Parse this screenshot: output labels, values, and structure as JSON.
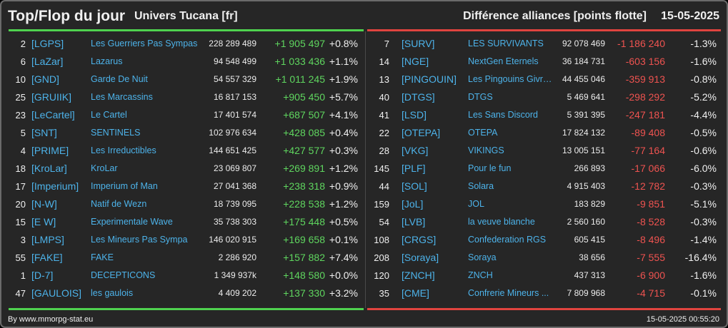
{
  "header": {
    "title": "Top/Flop du jour",
    "universe": "Univers Tucana [fr]",
    "subtitle": "Différence alliances [points flotte]",
    "date": "15-05-2025"
  },
  "colors": {
    "top": "#4fd24f",
    "flop": "#e0443f",
    "link": "#4db3ea",
    "background": "#262626"
  },
  "top": [
    {
      "rank": "2",
      "tag": "[LGPS]",
      "name": "Les Guerriers Pas Sympas",
      "points": "228 289 489",
      "diff": "+1 905 497",
      "pct": "+0.8%"
    },
    {
      "rank": "6",
      "tag": "[LaZar]",
      "name": "Lazarus",
      "points": "94 548 499",
      "diff": "+1 033 436",
      "pct": "+1.1%"
    },
    {
      "rank": "10",
      "tag": "[GND]",
      "name": "Garde De Nuit",
      "points": "54 557 329",
      "diff": "+1 011 245",
      "pct": "+1.9%"
    },
    {
      "rank": "25",
      "tag": "[GRUIIK]",
      "name": "Les Marcassins",
      "points": "16 817 153",
      "diff": "+905 450",
      "pct": "+5.7%"
    },
    {
      "rank": "23",
      "tag": "[LeCartel]",
      "name": "Le Cartel",
      "points": "17 401 574",
      "diff": "+687 507",
      "pct": "+4.1%"
    },
    {
      "rank": "5",
      "tag": "[SNT]",
      "name": "SENTINELS",
      "points": "102 976 634",
      "diff": "+428 085",
      "pct": "+0.4%"
    },
    {
      "rank": "4",
      "tag": "[PRIME]",
      "name": "Les Irreductibles",
      "points": "144 651 425",
      "diff": "+427 577",
      "pct": "+0.3%"
    },
    {
      "rank": "18",
      "tag": "[KroLar]",
      "name": "KroLar",
      "points": "23 069 807",
      "diff": "+269 891",
      "pct": "+1.2%"
    },
    {
      "rank": "17",
      "tag": "[Imperium]",
      "name": "Imperium of Man",
      "points": "27 041 368",
      "diff": "+238 318",
      "pct": "+0.9%"
    },
    {
      "rank": "20",
      "tag": "[N-W]",
      "name": "Natif de Wezn",
      "points": "18 739 095",
      "diff": "+228 538",
      "pct": "+1.2%"
    },
    {
      "rank": "15",
      "tag": "[E W]",
      "name": "Experimentale Wave",
      "points": "35 738 303",
      "diff": "+175 448",
      "pct": "+0.5%"
    },
    {
      "rank": "3",
      "tag": "[LMPS]",
      "name": "Les Mineurs Pas Sympa",
      "points": "146 020 915",
      "diff": "+169 658",
      "pct": "+0.1%"
    },
    {
      "rank": "55",
      "tag": "[FAKE]",
      "name": "FAKE",
      "points": "2 286 920",
      "diff": "+157 882",
      "pct": "+7.4%"
    },
    {
      "rank": "1",
      "tag": "[D-7]",
      "name": "DECEPTICONS",
      "points": "1 349 937k",
      "diff": "+148 580",
      "pct": "+0.0%"
    },
    {
      "rank": "47",
      "tag": "[GAULOIS]",
      "name": "les gaulois",
      "points": "4 409 202",
      "diff": "+137 330",
      "pct": "+3.2%"
    }
  ],
  "flop": [
    {
      "rank": "7",
      "tag": "[SURV]",
      "name": "LES SURVIVANTS",
      "points": "92 078 469",
      "diff": "-1 186 240",
      "pct": "-1.3%"
    },
    {
      "rank": "14",
      "tag": "[NGE]",
      "name": "NextGen Eternels",
      "points": "36 184 731",
      "diff": "-603 156",
      "pct": "-1.6%"
    },
    {
      "rank": "13",
      "tag": "[PINGOUIN]",
      "name": "Les Pingouins Givre...",
      "points": "44 455 046",
      "diff": "-359 913",
      "pct": "-0.8%"
    },
    {
      "rank": "40",
      "tag": "[DTGS]",
      "name": "DTGS",
      "points": "5 469 641",
      "diff": "-298 292",
      "pct": "-5.2%"
    },
    {
      "rank": "41",
      "tag": "[LSD]",
      "name": "Les Sans Discord",
      "points": "5 391 395",
      "diff": "-247 181",
      "pct": "-4.4%"
    },
    {
      "rank": "22",
      "tag": "[OTEPA]",
      "name": "OTEPA",
      "points": "17 824 132",
      "diff": "-89 408",
      "pct": "-0.5%"
    },
    {
      "rank": "28",
      "tag": "[VKG]",
      "name": "VIKINGS",
      "points": "13 005 151",
      "diff": "-77 164",
      "pct": "-0.6%"
    },
    {
      "rank": "145",
      "tag": "[PLF]",
      "name": "Pour le fun",
      "points": "266 893",
      "diff": "-17 066",
      "pct": "-6.0%"
    },
    {
      "rank": "44",
      "tag": "[SOL]",
      "name": "Solara",
      "points": "4 915 403",
      "diff": "-12 782",
      "pct": "-0.3%"
    },
    {
      "rank": "159",
      "tag": "[JoL]",
      "name": "JOL",
      "points": "183 829",
      "diff": "-9 851",
      "pct": "-5.1%"
    },
    {
      "rank": "54",
      "tag": "[LVB]",
      "name": "la veuve blanche",
      "points": "2 560 160",
      "diff": "-8 528",
      "pct": "-0.3%"
    },
    {
      "rank": "108",
      "tag": "[CRGS]",
      "name": "Confederation RGS",
      "points": "605 415",
      "diff": "-8 496",
      "pct": "-1.4%"
    },
    {
      "rank": "208",
      "tag": "[Soraya]",
      "name": "Soraya",
      "points": "38 656",
      "diff": "-7 555",
      "pct": "-16.4%"
    },
    {
      "rank": "120",
      "tag": "[ZNCH]",
      "name": "ZNCH",
      "points": "437 313",
      "diff": "-6 900",
      "pct": "-1.6%"
    },
    {
      "rank": "35",
      "tag": "[CME]",
      "name": "Confrerie Mineurs ...",
      "points": "7 809 968",
      "diff": "-4 715",
      "pct": "-0.1%"
    }
  ],
  "footer": {
    "credit": "By www.mmorpg-stat.eu",
    "timestamp": "15-05-2025 00:55:20"
  }
}
